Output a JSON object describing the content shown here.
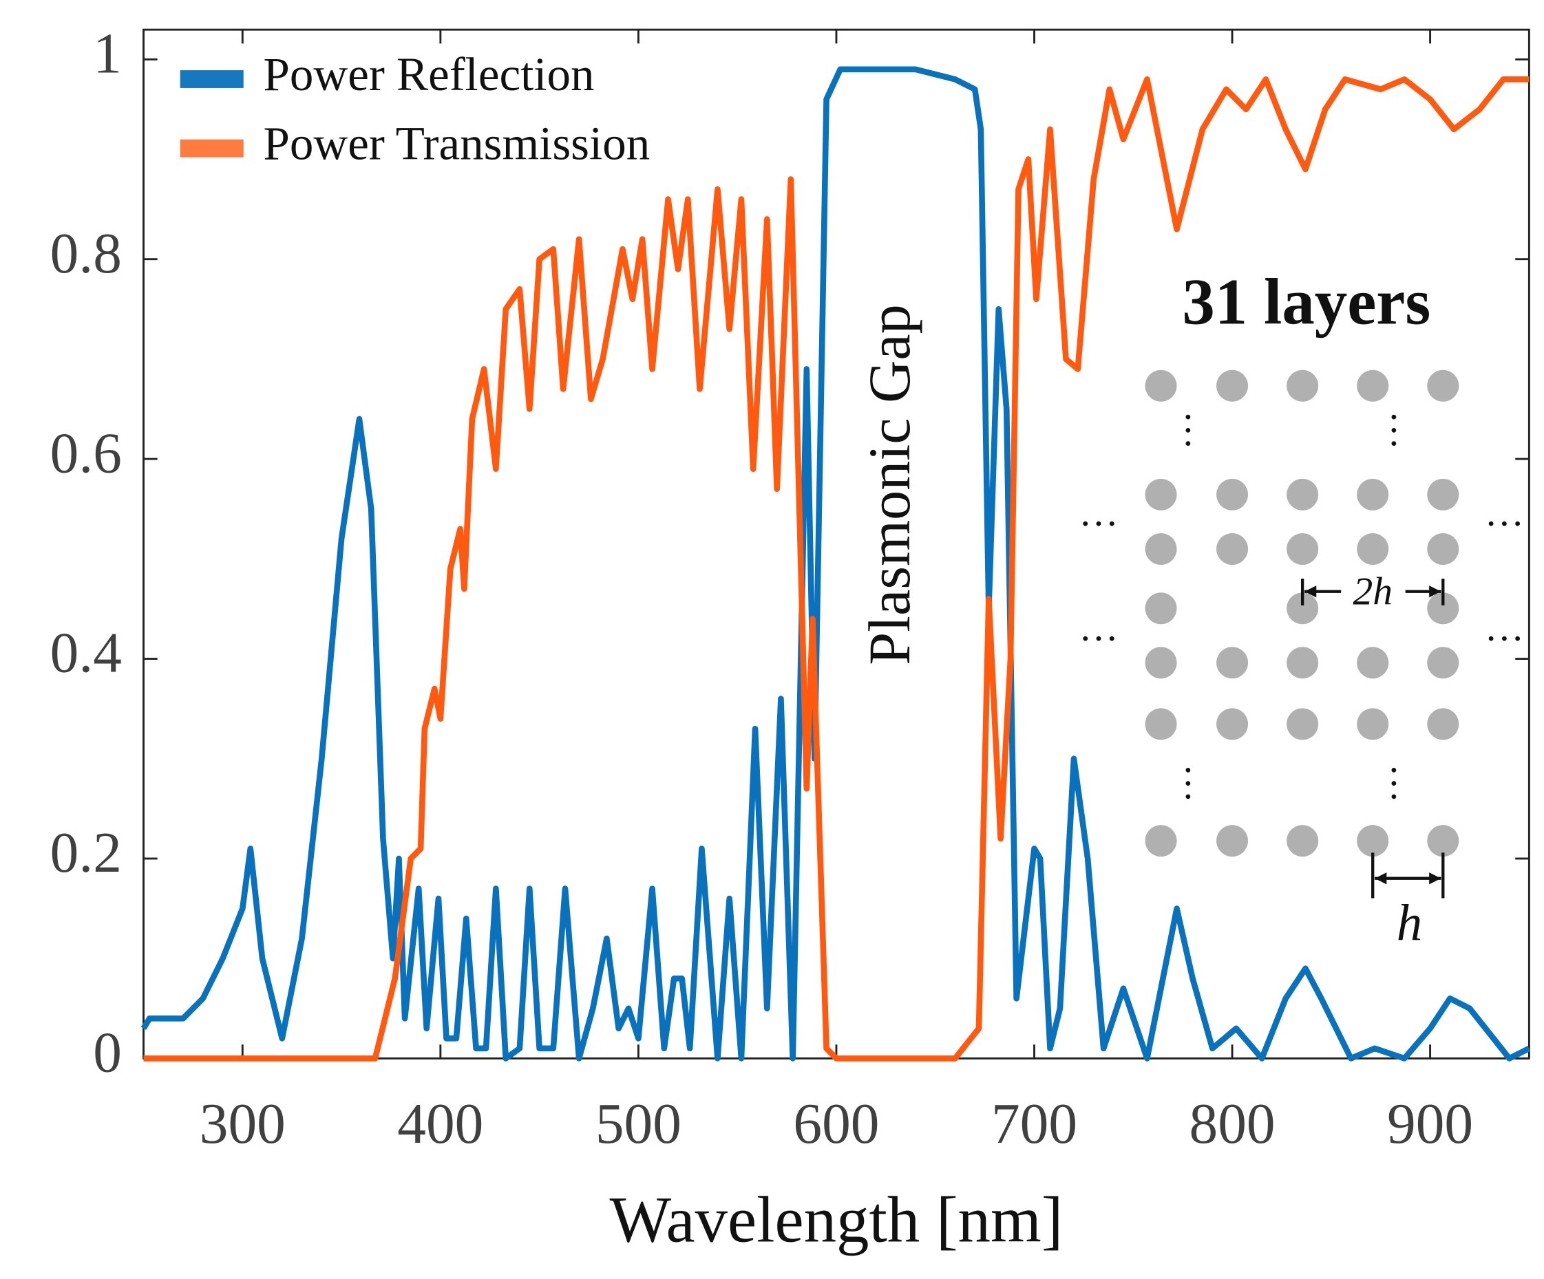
{
  "chart_data": {
    "type": "line",
    "xlabel": "Wavelength [nm]",
    "xlim": [
      250,
      950
    ],
    "ylim": [
      0,
      1
    ],
    "xticks": [
      300,
      400,
      500,
      600,
      700,
      800,
      900
    ],
    "yticks": [
      0,
      0.2,
      0.4,
      0.6,
      0.8,
      1
    ],
    "legend": "upper left",
    "annotations": [
      "Plasmonic Gap",
      "31 layers",
      "2h",
      "h"
    ],
    "series": [
      {
        "name": "Power Reflection",
        "color": "#0a72bd",
        "x": [
          250,
          253,
          260,
          270,
          280,
          290,
          300,
          304,
          310,
          320,
          330,
          340,
          350,
          359,
          365,
          371,
          376,
          379,
          382,
          389,
          393,
          399,
          403,
          408,
          413,
          418,
          423,
          428,
          433,
          440,
          445,
          450,
          457,
          463,
          470,
          477,
          484,
          490,
          495,
          500,
          507,
          513,
          518,
          522,
          526,
          532,
          540,
          546,
          552,
          559,
          565,
          572,
          578,
          585,
          589,
          595,
          602,
          620,
          640,
          660,
          670,
          673,
          677,
          682,
          686,
          691,
          700,
          703,
          708,
          713,
          720,
          727,
          735,
          745,
          757,
          765,
          772,
          780,
          790,
          802,
          815,
          827,
          837,
          845,
          860,
          872,
          887,
          900,
          910,
          920,
          940,
          950
        ],
        "values": [
          0.03,
          0.04,
          0.04,
          0.04,
          0.06,
          0.1,
          0.15,
          0.21,
          0.1,
          0.02,
          0.12,
          0.3,
          0.52,
          0.64,
          0.55,
          0.22,
          0.1,
          0.2,
          0.04,
          0.17,
          0.03,
          0.16,
          0.02,
          0.02,
          0.14,
          0.01,
          0.01,
          0.17,
          0.0,
          0.01,
          0.17,
          0.01,
          0.01,
          0.17,
          0.0,
          0.05,
          0.12,
          0.03,
          0.05,
          0.02,
          0.17,
          0.01,
          0.08,
          0.08,
          0.01,
          0.21,
          0.0,
          0.16,
          0.0,
          0.33,
          0.05,
          0.36,
          0.0,
          0.69,
          0.3,
          0.96,
          0.99,
          0.99,
          0.99,
          0.98,
          0.97,
          0.93,
          0.45,
          0.75,
          0.65,
          0.06,
          0.21,
          0.2,
          0.01,
          0.05,
          0.3,
          0.2,
          0.01,
          0.07,
          0.0,
          0.08,
          0.15,
          0.08,
          0.01,
          0.03,
          0.0,
          0.06,
          0.09,
          0.06,
          0.0,
          0.01,
          0.0,
          0.03,
          0.06,
          0.05,
          0.0,
          0.01
        ]
      },
      {
        "name": "Power Transmission",
        "color": "#ff5a0f",
        "x": [
          250,
          300,
          350,
          367,
          377,
          385,
          390,
          392,
          397,
          400,
          405,
          410,
          412,
          416,
          422,
          428,
          433,
          440,
          445,
          450,
          457,
          462,
          470,
          476,
          482,
          492,
          497,
          502,
          507,
          515,
          520,
          525,
          531,
          540,
          546,
          552,
          558,
          565,
          570,
          577,
          585,
          588,
          595,
          600,
          620,
          640,
          660,
          672,
          677,
          683,
          688,
          692,
          697,
          701,
          708,
          716,
          722,
          730,
          738,
          745,
          757,
          762,
          772,
          785,
          797,
          807,
          817,
          827,
          837,
          847,
          857,
          875,
          887,
          900,
          912,
          925,
          937,
          950
        ],
        "values": [
          0,
          0,
          0,
          0.0,
          0.08,
          0.2,
          0.21,
          0.33,
          0.37,
          0.34,
          0.49,
          0.53,
          0.47,
          0.64,
          0.69,
          0.59,
          0.75,
          0.77,
          0.65,
          0.8,
          0.81,
          0.67,
          0.82,
          0.66,
          0.7,
          0.81,
          0.76,
          0.82,
          0.69,
          0.86,
          0.79,
          0.86,
          0.67,
          0.87,
          0.73,
          0.86,
          0.59,
          0.84,
          0.57,
          0.88,
          0.27,
          0.44,
          0.01,
          0.0,
          0.0,
          0.0,
          0.0,
          0.03,
          0.46,
          0.22,
          0.4,
          0.87,
          0.9,
          0.76,
          0.93,
          0.7,
          0.69,
          0.88,
          0.97,
          0.92,
          0.98,
          0.93,
          0.83,
          0.93,
          0.97,
          0.95,
          0.98,
          0.93,
          0.89,
          0.95,
          0.98,
          0.97,
          0.98,
          0.96,
          0.93,
          0.95,
          0.98,
          0.98
        ]
      }
    ]
  }
}
